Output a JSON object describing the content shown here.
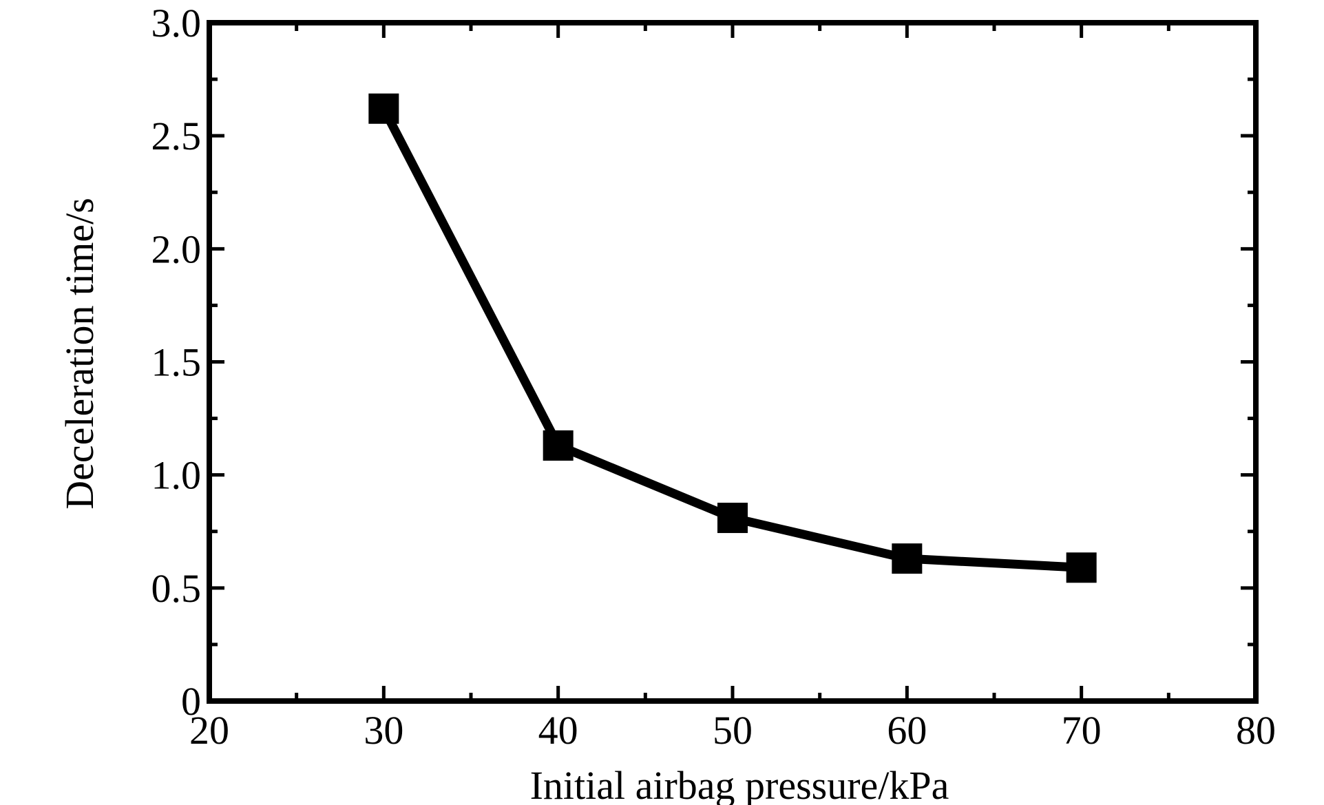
{
  "chart_data": {
    "type": "line",
    "xlabel": "Initial airbag pressure/kPa",
    "ylabel": "Deceleration time/s",
    "xlim": [
      20,
      80
    ],
    "ylim": [
      0,
      3.0
    ],
    "x_ticks": [
      20,
      30,
      40,
      50,
      60,
      70,
      80
    ],
    "x_tick_labels": [
      "20",
      "30",
      "40",
      "50",
      "60",
      "70",
      "80"
    ],
    "y_ticks": [
      0,
      0.5,
      1.0,
      1.5,
      2.0,
      2.5,
      3.0
    ],
    "y_tick_labels": [
      "0",
      "0.5",
      "1.0",
      "1.5",
      "2.0",
      "2.5",
      "3.0"
    ],
    "grid": false,
    "legend": "none",
    "series": [
      {
        "x": [
          30,
          40,
          50,
          60,
          70
        ],
        "y": [
          2.62,
          1.13,
          0.81,
          0.63,
          0.59
        ],
        "color": "#000000",
        "marker": "square"
      }
    ]
  }
}
